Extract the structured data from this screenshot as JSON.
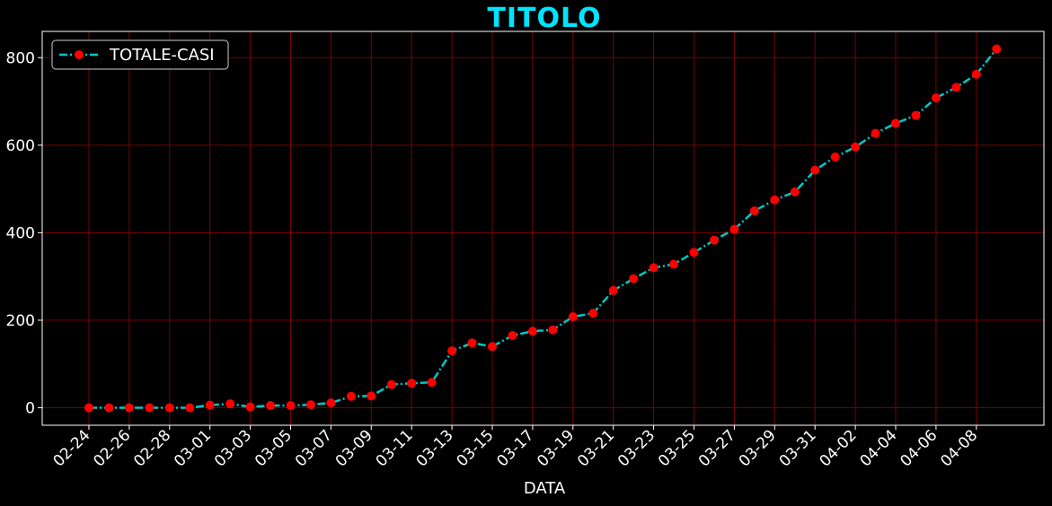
{
  "colors": {
    "background": "#000000",
    "title": "#00e5ff",
    "line": "#00c8c8",
    "marker": "#ff0000",
    "grid": "#7a0000",
    "axis": "#ffffff",
    "text": "#ffffff"
  },
  "chart_data": {
    "type": "line",
    "title": "TITOLO",
    "xlabel": "DATA",
    "ylabel": "",
    "grid": true,
    "legend_position": "top-left",
    "line_style": "dash-dot",
    "marker": "circle",
    "ylim": [
      -40,
      860
    ],
    "yticks": [
      0,
      200,
      400,
      600,
      800
    ],
    "xtick_labels": [
      "02-24",
      "02-26",
      "02-28",
      "03-01",
      "03-03",
      "03-05",
      "03-07",
      "03-09",
      "03-11",
      "03-13",
      "03-15",
      "03-17",
      "03-19",
      "03-21",
      "03-23",
      "03-25",
      "03-27",
      "03-29",
      "03-31",
      "04-02",
      "04-04",
      "04-06",
      "04-08"
    ],
    "series": [
      {
        "name": "TOTALE-CASI",
        "x": [
          "02-24",
          "02-25",
          "02-26",
          "02-27",
          "02-28",
          "02-29",
          "03-01",
          "03-02",
          "03-03",
          "03-04",
          "03-05",
          "03-06",
          "03-07",
          "03-08",
          "03-09",
          "03-10",
          "03-11",
          "03-12",
          "03-13",
          "03-14",
          "03-15",
          "03-16",
          "03-17",
          "03-18",
          "03-19",
          "03-20",
          "03-21",
          "03-22",
          "03-23",
          "03-24",
          "03-25",
          "03-26",
          "03-27",
          "03-28",
          "03-29",
          "03-30",
          "03-31",
          "04-01",
          "04-02",
          "04-03",
          "04-04",
          "04-05",
          "04-06",
          "04-07",
          "04-08",
          "04-09"
        ],
        "values": [
          0,
          0,
          0,
          0,
          0,
          0,
          6,
          9,
          2,
          5,
          5,
          7,
          11,
          26,
          27,
          53,
          56,
          58,
          130,
          148,
          140,
          165,
          175,
          178,
          208,
          216,
          268,
          295,
          320,
          328,
          355,
          383,
          408,
          450,
          475,
          493,
          543,
          573,
          596,
          627,
          650,
          668,
          708,
          732,
          762,
          820
        ]
      }
    ]
  }
}
